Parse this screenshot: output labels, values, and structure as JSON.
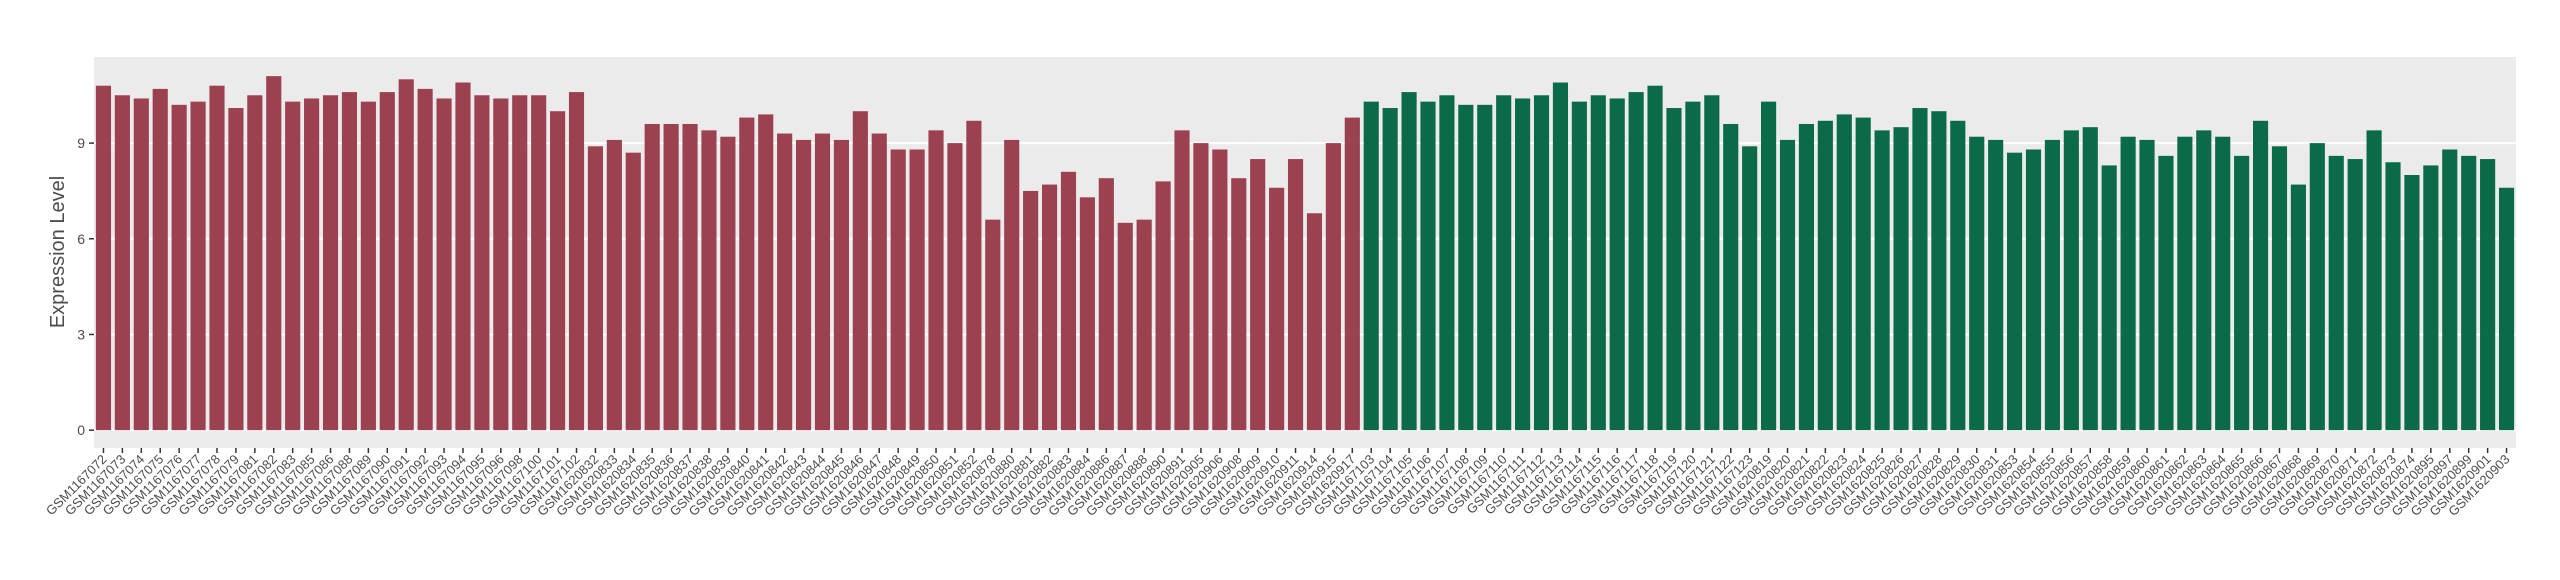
{
  "chart_data": {
    "type": "bar",
    "y_label": "Expression Level",
    "categories": [
      "GSM1167072",
      "GSM1167073",
      "GSM1167074",
      "GSM1167075",
      "GSM1167076",
      "GSM1167077",
      "GSM1167078",
      "GSM1167079",
      "GSM1167081",
      "GSM1167082",
      "GSM1167083",
      "GSM1167085",
      "GSM1167086",
      "GSM1167088",
      "GSM1167089",
      "GSM1167090",
      "GSM1167091",
      "GSM1167092",
      "GSM1167093",
      "GSM1167094",
      "GSM1167095",
      "GSM1167096",
      "GSM1167098",
      "GSM1167100",
      "GSM1167101",
      "GSM1167102",
      "GSM1620832",
      "GSM1620833",
      "GSM1620834",
      "GSM1620835",
      "GSM1620836",
      "GSM1620837",
      "GSM1620838",
      "GSM1620839",
      "GSM1620840",
      "GSM1620841",
      "GSM1620842",
      "GSM1620843",
      "GSM1620844",
      "GSM1620845",
      "GSM1620846",
      "GSM1620847",
      "GSM1620848",
      "GSM1620849",
      "GSM1620850",
      "GSM1620851",
      "GSM1620852",
      "GSM1620878",
      "GSM1620880",
      "GSM1620881",
      "GSM1620882",
      "GSM1620883",
      "GSM1620884",
      "GSM1620886",
      "GSM1620887",
      "GSM1620888",
      "GSM1620890",
      "GSM1620891",
      "GSM1620905",
      "GSM1620906",
      "GSM1620908",
      "GSM1620909",
      "GSM1620910",
      "GSM1620911",
      "GSM1620914",
      "GSM1620915",
      "GSM1620917",
      "GSM1167103",
      "GSM1167104",
      "GSM1167105",
      "GSM1167106",
      "GSM1167107",
      "GSM1167108",
      "GSM1167109",
      "GSM1167110",
      "GSM1167111",
      "GSM1167112",
      "GSM1167113",
      "GSM1167114",
      "GSM1167115",
      "GSM1167116",
      "GSM1167117",
      "GSM1167118",
      "GSM1167119",
      "GSM1167120",
      "GSM1167121",
      "GSM1167122",
      "GSM1167123",
      "GSM1620819",
      "GSM1620820",
      "GSM1620821",
      "GSM1620822",
      "GSM1620823",
      "GSM1620824",
      "GSM1620825",
      "GSM1620826",
      "GSM1620827",
      "GSM1620828",
      "GSM1620829",
      "GSM1620830",
      "GSM1620831",
      "GSM1620853",
      "GSM1620854",
      "GSM1620855",
      "GSM1620856",
      "GSM1620857",
      "GSM1620858",
      "GSM1620859",
      "GSM1620860",
      "GSM1620861",
      "GSM1620862",
      "GSM1620863",
      "GSM1620864",
      "GSM1620865",
      "GSM1620866",
      "GSM1620867",
      "GSM1620868",
      "GSM1620869",
      "GSM1620870",
      "GSM1620871",
      "GSM1620872",
      "GSM1620873",
      "GSM1620874",
      "GSM1620895",
      "GSM1620897",
      "GSM1620899",
      "GSM1620901",
      "GSM1620903"
    ],
    "series": [
      {
        "color": "#9b4150",
        "values": [
          10.8,
          10.5,
          10.4,
          10.7,
          10.2,
          10.3,
          10.8,
          10.1,
          10.5,
          11.1,
          10.3,
          10.4,
          10.5,
          10.6,
          10.3,
          10.6,
          11.0,
          10.7,
          10.4,
          10.9,
          10.5,
          10.4,
          10.5,
          10.5,
          10.0,
          10.6,
          8.9,
          9.1,
          8.7,
          9.6,
          9.6,
          9.6,
          9.4,
          9.2,
          9.8,
          9.9,
          9.3,
          9.1,
          9.3,
          9.1,
          10.0,
          9.3,
          8.8,
          8.8,
          9.4,
          9.0,
          9.7,
          6.6,
          9.1,
          7.5,
          7.7,
          8.1,
          7.3,
          7.9,
          6.5,
          6.6,
          7.8,
          9.4,
          9.0,
          8.8,
          7.9,
          8.5,
          7.6,
          8.5,
          6.8,
          9.0,
          9.8,
          null,
          null,
          null,
          null,
          null,
          null,
          null,
          null,
          null,
          null,
          null,
          null,
          null,
          null,
          null,
          null,
          null,
          null,
          null,
          null,
          null,
          null,
          null,
          null,
          null,
          null,
          null,
          null,
          null,
          null,
          null,
          null,
          null,
          null,
          null,
          null,
          null,
          null,
          null,
          null,
          null,
          null,
          null,
          null,
          null,
          null,
          null,
          null,
          null,
          null,
          null,
          null,
          null,
          null,
          null,
          null,
          null,
          null,
          null,
          null,
          null
        ]
      },
      {
        "color": "#0b6b48",
        "values": [
          null,
          null,
          null,
          null,
          null,
          null,
          null,
          null,
          null,
          null,
          null,
          null,
          null,
          null,
          null,
          null,
          null,
          null,
          null,
          null,
          null,
          null,
          null,
          null,
          null,
          null,
          null,
          null,
          null,
          null,
          null,
          null,
          null,
          null,
          null,
          null,
          null,
          null,
          null,
          null,
          null,
          null,
          null,
          null,
          null,
          null,
          null,
          null,
          null,
          null,
          null,
          null,
          null,
          null,
          null,
          null,
          null,
          null,
          null,
          null,
          null,
          null,
          null,
          null,
          null,
          null,
          null,
          10.3,
          10.1,
          10.6,
          10.3,
          10.5,
          10.2,
          10.2,
          10.5,
          10.4,
          10.5,
          10.9,
          10.3,
          10.5,
          10.4,
          10.6,
          10.8,
          10.1,
          10.3,
          10.5,
          9.6,
          8.9,
          10.3,
          9.1,
          9.6,
          9.7,
          9.9,
          9.8,
          9.4,
          9.5,
          10.1,
          10.0,
          9.7,
          9.2,
          9.1,
          8.7,
          8.8,
          9.1,
          9.4,
          9.5,
          8.3,
          9.2,
          9.1,
          8.6,
          9.2,
          9.4,
          9.2,
          8.6,
          9.7,
          8.9,
          7.7,
          9.0,
          8.6,
          8.5,
          9.4,
          8.4,
          8.0,
          8.3,
          8.8,
          8.6,
          8.5,
          7.6
        ]
      }
    ],
    "ylim": [
      -0.56,
      11.7
    ],
    "yticks": [
      0,
      3,
      6,
      9
    ],
    "grid": true
  }
}
